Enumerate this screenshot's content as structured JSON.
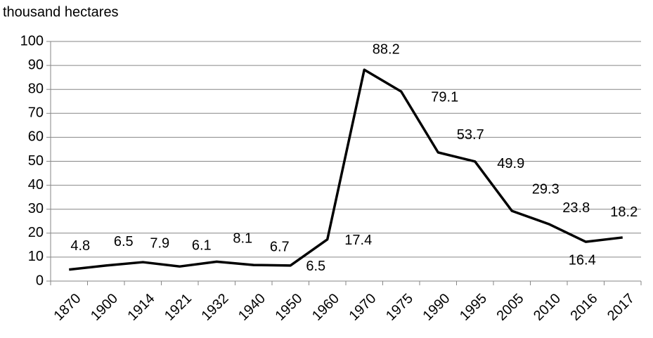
{
  "chart_data": {
    "type": "line",
    "y_label": "thousand hectares",
    "categories": [
      "1870",
      "1900",
      "1914",
      "1921",
      "1932",
      "1940",
      "1950",
      "1960",
      "1970",
      "1975",
      "1990",
      "1995",
      "2005",
      "2010",
      "2016",
      "2017"
    ],
    "values": [
      4.8,
      6.5,
      7.9,
      6.1,
      8.1,
      6.7,
      6.5,
      17.4,
      88.2,
      79.1,
      53.7,
      49.9,
      29.3,
      23.8,
      16.4,
      18.2
    ],
    "color": "#000000",
    "ylim": [
      0,
      100
    ],
    "yticks": [
      0,
      10,
      20,
      30,
      40,
      50,
      60,
      70,
      80,
      90,
      100
    ],
    "grid": true
  }
}
